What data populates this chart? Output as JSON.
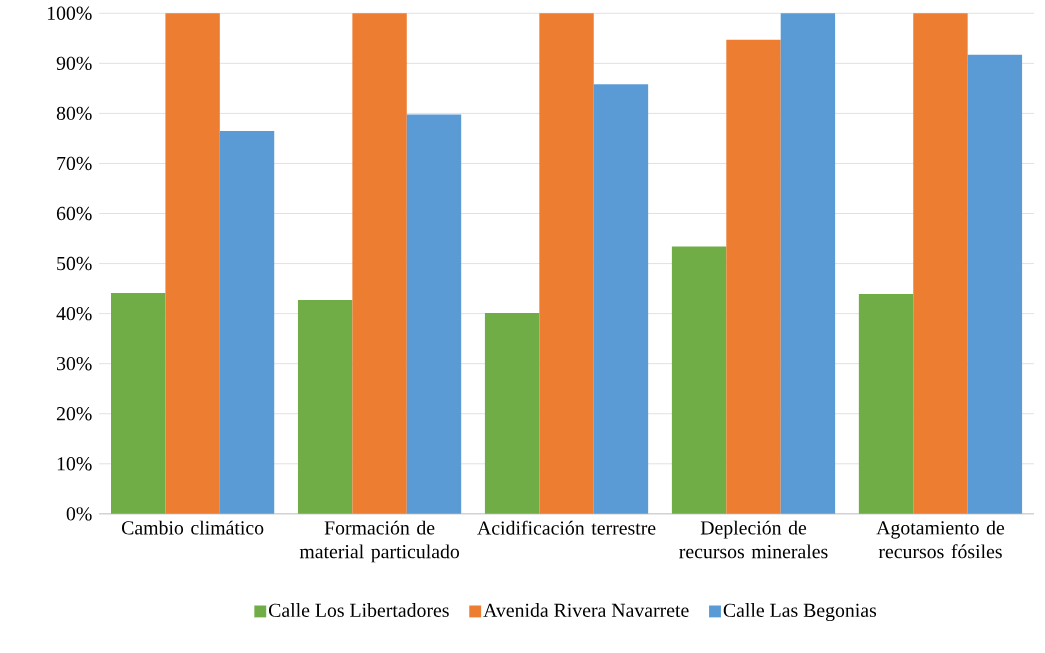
{
  "chart_data": {
    "type": "bar",
    "categories": [
      "Cambio climático",
      "Formación de material particulado",
      "Acidificación terrestre",
      "Depleción de recursos minerales",
      "Agotamiento de recursos fósiles"
    ],
    "series": [
      {
        "name": "Calle Los Libertadores",
        "color": "#70ad47",
        "values": [
          44.1,
          42.7,
          40.1,
          53.4,
          43.9
        ]
      },
      {
        "name": "Avenida Rivera Navarrete",
        "color": "#ed7d31",
        "values": [
          100,
          100,
          100,
          94.7,
          100
        ]
      },
      {
        "name": "Calle Las Begonias",
        "color": "#5b9bd5",
        "values": [
          76.5,
          79.8,
          85.8,
          100,
          91.7
        ]
      }
    ],
    "ylim": [
      0,
      100
    ],
    "yticks": [
      {
        "value": 0,
        "label": "0%"
      },
      {
        "value": 10,
        "label": "10%"
      },
      {
        "value": 20,
        "label": "20%"
      },
      {
        "value": 30,
        "label": "30%"
      },
      {
        "value": 40,
        "label": "40%"
      },
      {
        "value": 50,
        "label": "50%"
      },
      {
        "value": 60,
        "label": "60%"
      },
      {
        "value": 70,
        "label": "70%"
      },
      {
        "value": 80,
        "label": "80%"
      },
      {
        "value": 90,
        "label": "90%"
      },
      {
        "value": 100,
        "label": "100%"
      }
    ],
    "grid": "y",
    "legend": "bottom"
  }
}
